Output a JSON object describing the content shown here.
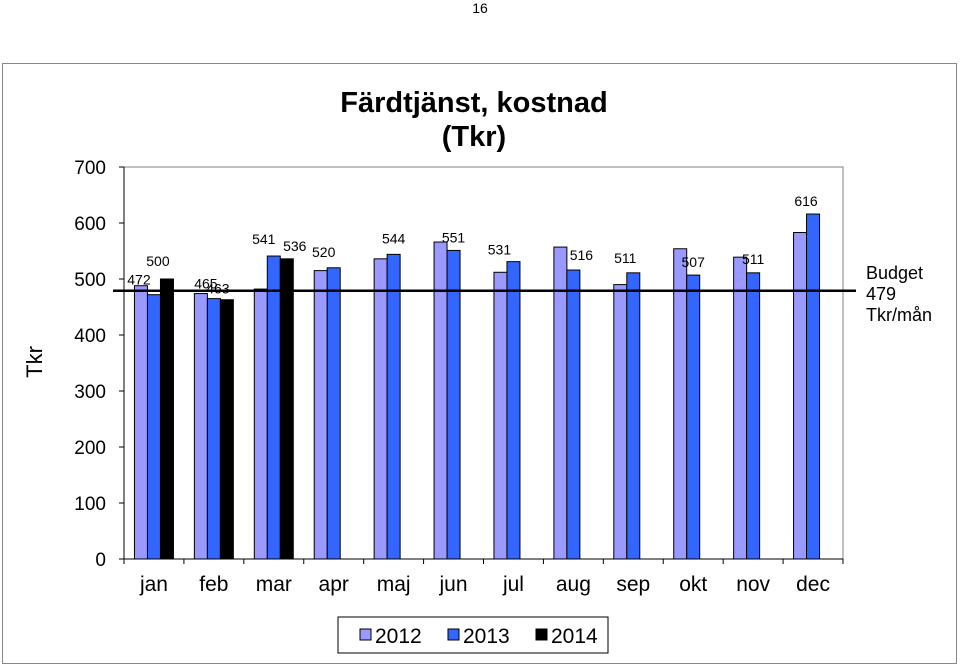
{
  "page": {
    "number": "16"
  },
  "chart_data": {
    "type": "bar",
    "title": "Färdtjänst, kostnad (Tkr)",
    "title_lines": [
      "Färdtjänst, kostnad",
      "(Tkr)"
    ],
    "ylabel": "Tkr",
    "xlabel": "",
    "ylim": [
      0,
      700
    ],
    "yticks": [
      0,
      100,
      200,
      300,
      400,
      500,
      600,
      700
    ],
    "grid": false,
    "legend_position": "bottom",
    "categories": [
      "jan",
      "feb",
      "mar",
      "apr",
      "maj",
      "jun",
      "jul",
      "aug",
      "sep",
      "okt",
      "nov",
      "dec"
    ],
    "series": [
      {
        "name": "2012",
        "color": "#9999ff",
        "values": [
          488,
          474,
          482,
          515,
          536,
          566,
          512,
          557,
          490,
          554,
          539,
          583
        ]
      },
      {
        "name": "2013",
        "color": "#3366ff",
        "values": [
          472,
          465,
          541,
          520,
          544,
          551,
          531,
          516,
          511,
          507,
          511,
          616
        ]
      },
      {
        "name": "2014",
        "color": "#000000",
        "values": [
          500,
          463,
          536,
          null,
          null,
          null,
          null,
          null,
          null,
          null,
          null,
          null
        ]
      }
    ],
    "data_labels": [
      {
        "series": 1,
        "index": 0,
        "text": "472"
      },
      {
        "series": 2,
        "index": 0,
        "text": "500"
      },
      {
        "series": 1,
        "index": 1,
        "text": "465"
      },
      {
        "series": 2,
        "index": 1,
        "text": "463"
      },
      {
        "series": 1,
        "index": 2,
        "text": "541"
      },
      {
        "series": 2,
        "index": 2,
        "text": "536"
      },
      {
        "series": 1,
        "index": 3,
        "text": "520"
      },
      {
        "series": 1,
        "index": 4,
        "text": "544"
      },
      {
        "series": 1,
        "index": 5,
        "text": "551"
      },
      {
        "series": 1,
        "index": 6,
        "text": "531"
      },
      {
        "series": 1,
        "index": 7,
        "text": "516"
      },
      {
        "series": 1,
        "index": 8,
        "text": "511"
      },
      {
        "series": 1,
        "index": 9,
        "text": "507"
      },
      {
        "series": 1,
        "index": 10,
        "text": "511"
      },
      {
        "series": 1,
        "index": 11,
        "text": "616"
      }
    ],
    "reference_line": {
      "value": 479,
      "label_lines": [
        "Budget",
        "479",
        "Tkr/mån"
      ]
    }
  }
}
